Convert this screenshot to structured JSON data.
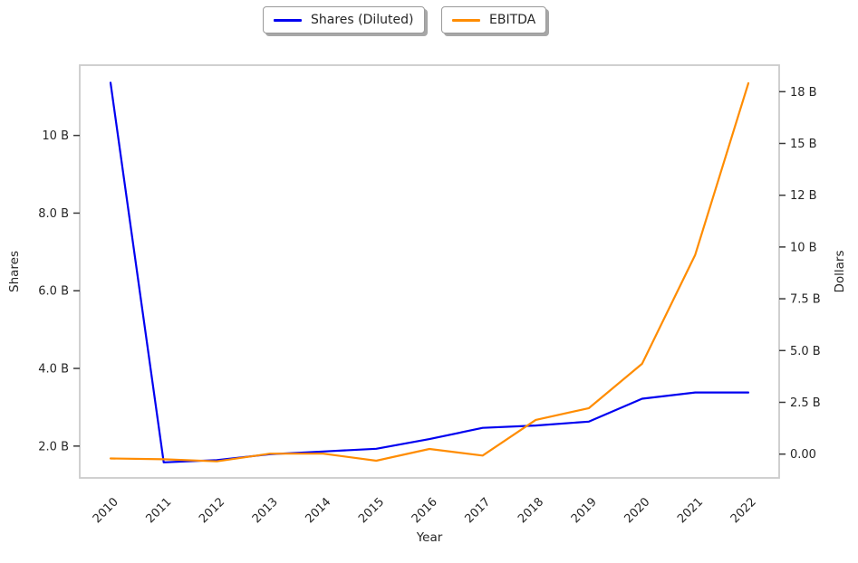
{
  "chart_data": {
    "type": "line",
    "title": "",
    "xlabel": "Year",
    "x": [
      "2010",
      "2011",
      "2012",
      "2013",
      "2014",
      "2015",
      "2016",
      "2017",
      "2018",
      "2019",
      "2020",
      "2021",
      "2022"
    ],
    "series": [
      {
        "name": "Shares (Diluted)",
        "color": "#0000f0",
        "axis": "left",
        "values": [
          11.36,
          1.58,
          1.64,
          1.79,
          1.86,
          1.93,
          2.18,
          2.47,
          2.53,
          2.63,
          3.22,
          3.38,
          3.38
        ]
      },
      {
        "name": "EBITDA",
        "color": "#ff8c00",
        "axis": "right",
        "values": [
          -0.21,
          -0.25,
          -0.35,
          0.02,
          0.02,
          -0.32,
          0.25,
          -0.07,
          1.65,
          2.22,
          4.36,
          9.62,
          17.91
        ]
      }
    ],
    "left_axis": {
      "label": "Shares",
      "unit": "B",
      "range": [
        1.18,
        11.81
      ],
      "ticks": [
        {
          "value": 2.0,
          "label": "2.0 B"
        },
        {
          "value": 4.0,
          "label": "4.0 B"
        },
        {
          "value": 6.0,
          "label": "6.0 B"
        },
        {
          "value": 8.0,
          "label": "8.0 B"
        },
        {
          "value": 10.0,
          "label": "10 B"
        }
      ]
    },
    "right_axis": {
      "label": "Dollars",
      "unit": "B",
      "range": [
        -1.15,
        18.78
      ],
      "ticks": [
        {
          "value": 0.0,
          "label": "0.00"
        },
        {
          "value": 2.5,
          "label": "2.5 B"
        },
        {
          "value": 5.0,
          "label": "5.0 B"
        },
        {
          "value": 7.5,
          "label": "7.5 B"
        },
        {
          "value": 10.0,
          "label": "10 B"
        },
        {
          "value": 12.5,
          "label": "12 B"
        },
        {
          "value": 15.0,
          "label": "15 B"
        },
        {
          "value": 17.5,
          "label": "18 B"
        }
      ]
    },
    "legend_position": "top-outside",
    "grid": "off",
    "frame_color": "#cbcbcb",
    "tick_color": "#3a3a3a"
  }
}
